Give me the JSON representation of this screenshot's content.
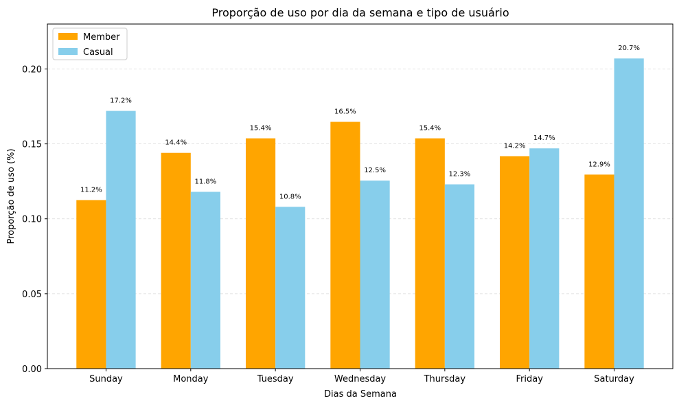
{
  "chart_data": {
    "type": "bar",
    "title": "Proporção de uso por dia da semana e tipo de usuário",
    "xlabel": "Dias da Semana",
    "ylabel": "Proporção de uso (%)",
    "categories": [
      "Sunday",
      "Monday",
      "Tuesday",
      "Wednesday",
      "Thursday",
      "Friday",
      "Saturday"
    ],
    "series": [
      {
        "name": "Member",
        "color": "#FFA500",
        "values": [
          0.1125,
          0.144,
          0.1537,
          0.1647,
          0.1537,
          0.1418,
          0.1295
        ],
        "labels": [
          "11.2%",
          "14.4%",
          "15.4%",
          "16.5%",
          "15.4%",
          "14.2%",
          "12.9%"
        ]
      },
      {
        "name": "Casual",
        "color": "#87CEEB",
        "values": [
          0.172,
          0.118,
          0.108,
          0.1255,
          0.123,
          0.147,
          0.207
        ],
        "labels": [
          "17.2%",
          "11.8%",
          "10.8%",
          "12.5%",
          "12.3%",
          "14.7%",
          "20.7%"
        ]
      }
    ],
    "ylim": [
      0,
      0.23
    ],
    "yticks": [
      0.0,
      0.05,
      0.1,
      0.15,
      0.2
    ],
    "ytick_labels": [
      "0.00",
      "0.05",
      "0.10",
      "0.15",
      "0.20"
    ],
    "grid": true,
    "legend": "top-left"
  }
}
